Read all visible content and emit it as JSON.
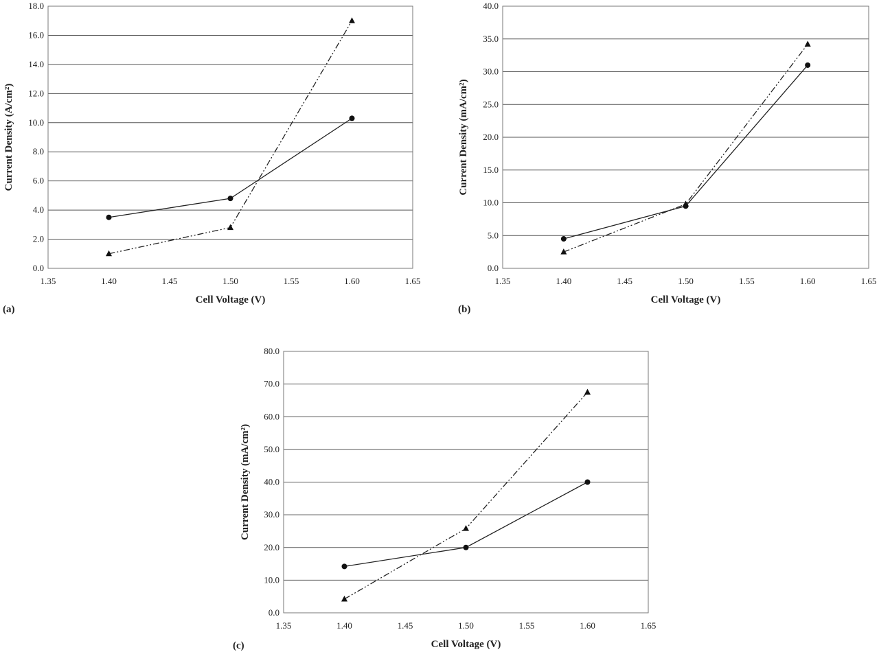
{
  "chart_data": [
    {
      "type": "line",
      "panel_label": "(a)",
      "xlabel": "Cell Voltage (V)",
      "ylabel": "Current Density (A/cm²)",
      "xlim": [
        1.35,
        1.65
      ],
      "ylim": [
        0,
        18
      ],
      "xticks": [
        "1.35",
        "1.40",
        "1.45",
        "1.50",
        "1.55",
        "1.60",
        "1.65"
      ],
      "yticks": [
        "0.0",
        "2.0",
        "4.0",
        "6.0",
        "8.0",
        "10.0",
        "12.0",
        "14.0",
        "16.0",
        "18.0"
      ],
      "grid": true,
      "x": [
        1.4,
        1.5,
        1.6
      ],
      "series": [
        {
          "marker": "circle",
          "line": "solid",
          "values": [
            3.5,
            4.8,
            10.3
          ]
        },
        {
          "marker": "triangle",
          "line": "dash-dot-dot",
          "values": [
            1.0,
            2.8,
            17.0
          ]
        }
      ]
    },
    {
      "type": "line",
      "panel_label": "(b)",
      "xlabel": "Cell Voltage (V)",
      "ylabel": "Current Density (mA/cm²)",
      "xlim": [
        1.35,
        1.65
      ],
      "ylim": [
        0,
        40
      ],
      "xticks": [
        "1.35",
        "1.40",
        "1.45",
        "1.50",
        "1.55",
        "1.60",
        "1.65"
      ],
      "yticks": [
        "0.0",
        "5.0",
        "10.0",
        "15.0",
        "20.0",
        "25.0",
        "30.0",
        "35.0",
        "40.0"
      ],
      "grid": true,
      "x": [
        1.4,
        1.5,
        1.6
      ],
      "series": [
        {
          "marker": "circle",
          "line": "solid",
          "values": [
            4.5,
            9.5,
            31.0
          ]
        },
        {
          "marker": "triangle",
          "line": "dash-dot-dot",
          "values": [
            2.5,
            9.8,
            34.2
          ]
        }
      ]
    },
    {
      "type": "line",
      "panel_label": "(c)",
      "xlabel": "Cell Voltage (V)",
      "ylabel": "Current Density (mA/cm²)",
      "xlim": [
        1.35,
        1.65
      ],
      "ylim": [
        0,
        80
      ],
      "xticks": [
        "1.35",
        "1.40",
        "1.45",
        "1.50",
        "1.55",
        "1.60",
        "1.65"
      ],
      "yticks": [
        "0.0",
        "10.0",
        "20.0",
        "30.0",
        "40.0",
        "50.0",
        "60.0",
        "70.0",
        "80.0"
      ],
      "grid": true,
      "x": [
        1.4,
        1.5,
        1.6
      ],
      "series": [
        {
          "marker": "circle",
          "line": "solid",
          "values": [
            14.2,
            20.0,
            40.0
          ]
        },
        {
          "marker": "triangle",
          "line": "dash-dot-dot",
          "values": [
            4.2,
            25.8,
            67.5
          ]
        }
      ]
    }
  ]
}
